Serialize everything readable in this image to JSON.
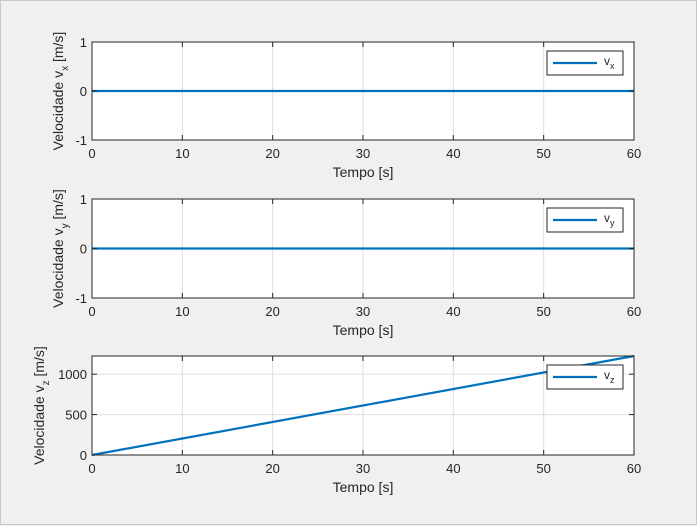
{
  "figure": {
    "background": "#f0f0f0",
    "axes_background": "#ffffff",
    "line_color": "#0072bd",
    "grid_color": "#dedede"
  },
  "chart_data": [
    {
      "type": "line",
      "title": "",
      "xlabel": "Tempo [s]",
      "ylabel": {
        "prefix": "Velocidade v",
        "sub": "x",
        "suffix": " [m/s]"
      },
      "xlim": [
        0,
        60
      ],
      "ylim": [
        -1,
        1
      ],
      "xticks": [
        0,
        10,
        20,
        30,
        40,
        50,
        60
      ],
      "yticks": [
        -1,
        0,
        1
      ],
      "grid": true,
      "legend_position": "top-right",
      "series": [
        {
          "legend": {
            "main": "v",
            "sub": "x"
          },
          "x": [
            0,
            60
          ],
          "y": [
            0,
            0
          ]
        }
      ]
    },
    {
      "type": "line",
      "title": "",
      "xlabel": "Tempo [s]",
      "ylabel": {
        "prefix": "Velocidade v",
        "sub": "y",
        "suffix": " [m/s]"
      },
      "xlim": [
        0,
        60
      ],
      "ylim": [
        -1,
        1
      ],
      "xticks": [
        0,
        10,
        20,
        30,
        40,
        50,
        60
      ],
      "yticks": [
        -1,
        0,
        1
      ],
      "grid": true,
      "legend_position": "top-right",
      "series": [
        {
          "legend": {
            "main": "v",
            "sub": "y"
          },
          "x": [
            0,
            60
          ],
          "y": [
            0,
            0
          ]
        }
      ]
    },
    {
      "type": "line",
      "title": "",
      "xlabel": "Tempo [s]",
      "ylabel": {
        "prefix": "Velocidade v",
        "sub": "z",
        "suffix": " [m/s]"
      },
      "xlim": [
        0,
        60
      ],
      "ylim": [
        0,
        1225
      ],
      "xticks": [
        0,
        10,
        20,
        30,
        40,
        50,
        60
      ],
      "yticks": [
        0,
        500,
        1000
      ],
      "grid": true,
      "legend_position": "top-right",
      "series": [
        {
          "legend": {
            "main": "v",
            "sub": "z"
          },
          "x": [
            0,
            60
          ],
          "y": [
            0,
            1225
          ]
        }
      ]
    }
  ]
}
